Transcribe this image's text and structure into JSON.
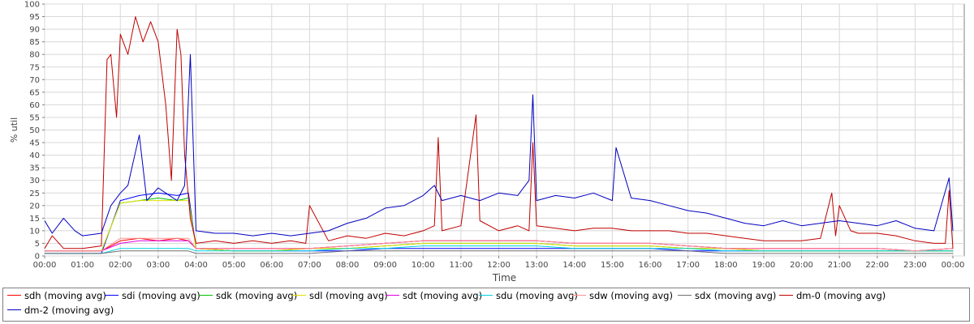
{
  "chart_data": {
    "type": "line",
    "title": "",
    "xlabel": "Time",
    "ylabel": "% util",
    "ylim": [
      0,
      100
    ],
    "xlim": [
      0,
      24.3
    ],
    "y_ticks": [
      "0",
      "5",
      "10",
      "15",
      "20",
      "25",
      "30",
      "35",
      "40",
      "45",
      "50",
      "55",
      "60",
      "65",
      "70",
      "75",
      "80",
      "85",
      "90",
      "95",
      "100"
    ],
    "x_ticks": [
      "00:00",
      "01:00",
      "02:00",
      "03:00",
      "04:00",
      "05:00",
      "06:00",
      "07:00",
      "08:00",
      "09:00",
      "10:00",
      "11:00",
      "12:00",
      "13:00",
      "14:00",
      "15:00",
      "16:00",
      "17:00",
      "18:00",
      "19:00",
      "20:00",
      "21:00",
      "22:00",
      "23:00",
      "00:00"
    ],
    "grid": true,
    "legend_position": "bottom",
    "series": [
      {
        "name": "sdh (moving avg)",
        "color": "#ff0000",
        "x": [
          0,
          1,
          1.5,
          2,
          2.5,
          3,
          3.5,
          3.8,
          4,
          5,
          6,
          7,
          8,
          9,
          10,
          11,
          12,
          13,
          14,
          15,
          16,
          17,
          18,
          19,
          20,
          21,
          22,
          23,
          24
        ],
        "y": [
          2,
          2,
          2,
          6,
          7,
          6,
          7,
          6,
          3,
          3,
          3,
          3,
          4,
          5,
          6,
          6,
          6,
          6,
          5,
          5,
          5,
          4,
          3,
          3,
          3,
          3,
          3,
          2,
          3
        ]
      },
      {
        "name": "sdi (moving avg)",
        "color": "#0000ff",
        "x": [
          0,
          1,
          1.5,
          2,
          2.5,
          3,
          3.5,
          3.8,
          4,
          5,
          6,
          7,
          8,
          9,
          10,
          11,
          12,
          13,
          14,
          15,
          16,
          17,
          18,
          19,
          20,
          21,
          22,
          23,
          24
        ],
        "y": [
          1,
          1,
          1,
          22,
          24,
          25,
          24,
          25,
          3,
          2,
          2,
          2,
          2,
          3,
          3,
          3,
          3,
          3,
          3,
          3,
          3,
          2,
          2,
          2,
          2,
          2,
          2,
          2,
          2
        ]
      },
      {
        "name": "sdk (moving avg)",
        "color": "#00c000",
        "x": [
          0,
          1,
          1.5,
          2,
          2.5,
          3,
          3.5,
          3.8,
          4,
          5,
          6,
          7,
          8,
          9,
          10,
          11,
          12,
          13,
          14,
          15,
          16,
          17,
          18,
          19,
          20,
          21,
          22,
          23,
          24
        ],
        "y": [
          2,
          2,
          2,
          21,
          22,
          23,
          22,
          23,
          3,
          2,
          2,
          3,
          3,
          4,
          5,
          5,
          5,
          5,
          4,
          4,
          4,
          3,
          3,
          2,
          2,
          2,
          2,
          2,
          2
        ]
      },
      {
        "name": "sdl (moving avg)",
        "color": "#e0e000",
        "x": [
          0,
          1,
          1.5,
          2,
          2.5,
          3,
          3.5,
          3.8,
          4,
          5,
          6,
          7,
          8,
          9,
          10,
          11,
          12,
          13,
          14,
          15,
          16,
          17,
          18,
          19,
          20,
          21,
          22,
          23,
          24
        ],
        "y": [
          2,
          2,
          2,
          21,
          22,
          22,
          22,
          22,
          3,
          2,
          2,
          3,
          3,
          4,
          5,
          5,
          5,
          5,
          4,
          4,
          4,
          3,
          3,
          2,
          2,
          2,
          2,
          2,
          2
        ]
      },
      {
        "name": "sdt (moving avg)",
        "color": "#e000e0",
        "x": [
          0,
          1,
          1.5,
          2,
          2.5,
          3,
          3.5,
          3.8,
          4,
          5,
          6,
          7,
          8,
          9,
          10,
          11,
          12,
          13,
          14,
          15,
          16,
          17,
          18,
          19,
          20,
          21,
          22,
          23,
          24
        ],
        "y": [
          2,
          2,
          2,
          5,
          6,
          6,
          6,
          6,
          3,
          3,
          3,
          3,
          4,
          5,
          6,
          6,
          6,
          6,
          5,
          5,
          5,
          4,
          3,
          3,
          3,
          3,
          3,
          2,
          3
        ]
      },
      {
        "name": "sdu (moving avg)",
        "color": "#00d0e0",
        "x": [
          0,
          1,
          1.5,
          2,
          2.5,
          3,
          3.5,
          3.8,
          4,
          5,
          6,
          7,
          8,
          9,
          10,
          11,
          12,
          13,
          14,
          15,
          16,
          17,
          18,
          19,
          20,
          21,
          22,
          23,
          24
        ],
        "y": [
          1,
          1,
          1,
          3,
          3,
          3,
          3,
          3,
          2,
          2,
          2,
          2,
          3,
          3,
          4,
          4,
          4,
          4,
          3,
          3,
          3,
          3,
          2,
          2,
          2,
          2,
          2,
          2,
          2
        ]
      },
      {
        "name": "sdw (moving avg)",
        "color": "#ff9090",
        "x": [
          0,
          1,
          1.5,
          2,
          2.5,
          3,
          3.5,
          3.8,
          4,
          5,
          6,
          7,
          8,
          9,
          10,
          11,
          12,
          13,
          14,
          15,
          16,
          17,
          18,
          19,
          20,
          21,
          22,
          23,
          24
        ],
        "y": [
          2,
          2,
          2,
          7,
          7,
          7,
          7,
          7,
          3,
          3,
          3,
          3,
          4,
          5,
          6,
          6,
          6,
          6,
          5,
          5,
          5,
          4,
          3,
          3,
          3,
          3,
          3,
          2,
          3
        ]
      },
      {
        "name": "sdx (moving avg)",
        "color": "#707070",
        "x": [
          0,
          1,
          1.5,
          2,
          2.5,
          3,
          3.5,
          3.8,
          4,
          5,
          6,
          7,
          8,
          9,
          10,
          11,
          12,
          13,
          14,
          15,
          16,
          17,
          18,
          19,
          20,
          21,
          22,
          23,
          24
        ],
        "y": [
          1,
          1,
          1,
          2,
          2,
          2,
          2,
          2,
          1,
          1,
          1,
          1,
          2,
          2,
          2,
          2,
          2,
          2,
          2,
          2,
          2,
          2,
          1,
          1,
          1,
          1,
          1,
          1,
          1
        ]
      },
      {
        "name": "dm-0 (moving avg)",
        "color": "#c00000",
        "x": [
          0,
          0.2,
          0.5,
          1,
          1.5,
          1.65,
          1.75,
          1.9,
          2,
          2.2,
          2.4,
          2.6,
          2.8,
          3,
          3.2,
          3.35,
          3.5,
          3.6,
          3.7,
          3.85,
          4,
          4.5,
          5,
          5.5,
          6,
          6.5,
          6.9,
          7,
          7.5,
          8,
          8.5,
          9,
          9.5,
          10,
          10.3,
          10.4,
          10.5,
          11,
          11.4,
          11.5,
          12,
          12.5,
          12.8,
          12.9,
          13,
          13.5,
          14,
          14.5,
          15,
          15.5,
          16,
          16.5,
          17,
          17.5,
          18,
          18.5,
          19,
          19.5,
          20,
          20.5,
          20.8,
          20.9,
          21,
          21.3,
          21.5,
          22,
          22.5,
          23,
          23.5,
          23.8,
          23.9,
          24
        ],
        "y": [
          3,
          8,
          3,
          3,
          4,
          78,
          80,
          55,
          88,
          80,
          95,
          85,
          93,
          85,
          60,
          30,
          90,
          80,
          40,
          15,
          5,
          6,
          5,
          6,
          5,
          6,
          5,
          20,
          6,
          8,
          7,
          9,
          8,
          10,
          12,
          47,
          10,
          12,
          56,
          14,
          10,
          12,
          10,
          45,
          12,
          11,
          10,
          11,
          11,
          10,
          10,
          10,
          9,
          9,
          8,
          7,
          6,
          6,
          6,
          7,
          25,
          8,
          20,
          10,
          9,
          9,
          8,
          6,
          5,
          5,
          26,
          3
        ]
      },
      {
        "name": "dm-2 (moving avg)",
        "color": "#0000c0",
        "x": [
          0,
          0.2,
          0.5,
          0.8,
          1,
          1.5,
          1.75,
          2,
          2.2,
          2.5,
          2.7,
          3,
          3.2,
          3.5,
          3.7,
          3.85,
          4,
          4.5,
          5,
          5.5,
          6,
          6.5,
          7,
          7.5,
          8,
          8.5,
          9,
          9.5,
          10,
          10.3,
          10.5,
          11,
          11.5,
          12,
          12.5,
          12.8,
          12.9,
          13,
          13.5,
          14,
          14.5,
          15,
          15.1,
          15.5,
          16,
          16.5,
          17,
          17.5,
          18,
          18.5,
          19,
          19.5,
          20,
          20.5,
          21,
          21.5,
          22,
          22.5,
          23,
          23.5,
          23.9,
          24
        ],
        "y": [
          14,
          9,
          15,
          10,
          8,
          9,
          20,
          25,
          28,
          48,
          22,
          27,
          25,
          22,
          28,
          80,
          10,
          9,
          9,
          8,
          9,
          8,
          9,
          10,
          13,
          15,
          19,
          20,
          24,
          28,
          22,
          24,
          22,
          25,
          24,
          30,
          64,
          22,
          24,
          23,
          25,
          22,
          43,
          23,
          22,
          20,
          18,
          17,
          15,
          13,
          12,
          14,
          12,
          13,
          14,
          13,
          12,
          14,
          11,
          10,
          31,
          10
        ]
      }
    ]
  },
  "legend": {
    "items": [
      {
        "label": "sdh (moving avg)"
      },
      {
        "label": "sdi (moving avg)"
      },
      {
        "label": "sdk (moving avg)"
      },
      {
        "label": "sdl (moving avg)"
      },
      {
        "label": "sdt (moving avg)"
      },
      {
        "label": "sdu (moving avg)"
      },
      {
        "label": "sdw (moving avg)"
      },
      {
        "label": "sdx (moving avg)"
      },
      {
        "label": "dm-0 (moving avg)"
      },
      {
        "label": "dm-2 (moving avg)"
      }
    ]
  }
}
